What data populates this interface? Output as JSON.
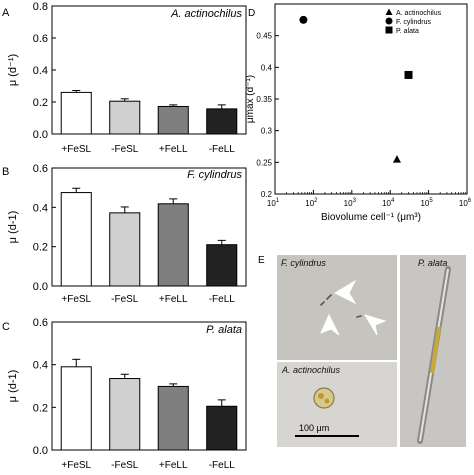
{
  "panel_labels": {
    "A": "A",
    "B": "B",
    "C": "C",
    "D": "D",
    "E": "E"
  },
  "chart_data": [
    {
      "type": "bar",
      "panel": "A",
      "title": "A. actinochilus",
      "ylabel": "μ (d⁻¹)",
      "categories": [
        "+FeSL",
        "-FeSL",
        "+FeLL",
        "-FeLL"
      ],
      "values": [
        0.26,
        0.205,
        0.172,
        0.157
      ],
      "errors": [
        0.012,
        0.015,
        0.01,
        0.025
      ],
      "bar_colors": [
        "#ffffff",
        "#d0d0d0",
        "#7f7f7f",
        "#222222"
      ],
      "ylim": [
        0,
        0.8
      ],
      "yticks": [
        0.0,
        0.2,
        0.4,
        0.6,
        0.8
      ],
      "ytick_labels": [
        "0.0",
        "0.2",
        "0.4",
        "0.6",
        "0.8"
      ]
    },
    {
      "type": "bar",
      "panel": "B",
      "title": "F. cylindrus",
      "ylabel": "μ (d-1)",
      "categories": [
        "+FeSL",
        "-FeSL",
        "+FeLL",
        "-FeLL"
      ],
      "values": [
        0.475,
        0.372,
        0.418,
        0.21
      ],
      "errors": [
        0.022,
        0.03,
        0.025,
        0.022
      ],
      "bar_colors": [
        "#ffffff",
        "#d0d0d0",
        "#7f7f7f",
        "#222222"
      ],
      "ylim": [
        0,
        0.6
      ],
      "yticks": [
        0.0,
        0.2,
        0.4,
        0.6
      ],
      "ytick_labels": [
        "0.0",
        "0.2",
        "0.4",
        "0.6"
      ]
    },
    {
      "type": "bar",
      "panel": "C",
      "title": "P. alata",
      "ylabel": "μ (d-1)",
      "categories": [
        "+FeSL",
        "-FeSL",
        "+FeLL",
        "-FeLL"
      ],
      "values": [
        0.39,
        0.335,
        0.298,
        0.205
      ],
      "errors": [
        0.035,
        0.02,
        0.012,
        0.03
      ],
      "bar_colors": [
        "#ffffff",
        "#d0d0d0",
        "#7f7f7f",
        "#222222"
      ],
      "ylim": [
        0,
        0.6
      ],
      "yticks": [
        0.0,
        0.2,
        0.4,
        0.6
      ],
      "ytick_labels": [
        "0.0",
        "0.2",
        "0.4",
        "0.6"
      ]
    },
    {
      "type": "scatter",
      "panel": "D",
      "xlabel": "Biovolume cell⁻¹ (μm³)",
      "ylabel": "μmax (d⁻¹)",
      "xscale": "log",
      "xlim": [
        10,
        1000000
      ],
      "ylim": [
        0.2,
        0.5
      ],
      "yticks": [
        0.2,
        0.25,
        0.3,
        0.35,
        0.4,
        0.45
      ],
      "ytick_labels": [
        "0.2",
        "0.25",
        "0.3",
        "0.35",
        "0.4",
        "0.45"
      ],
      "xticks": [
        10,
        100,
        1000,
        10000,
        100000,
        1000000
      ],
      "xtick_exponents": [
        "1",
        "2",
        "3",
        "4",
        "5",
        "6"
      ],
      "legend_position": "top-right",
      "series": [
        {
          "name": "A. actinochilus",
          "marker": "triangle",
          "x": 15000,
          "y": 0.255
        },
        {
          "name": "F. cylindrus",
          "marker": "circle",
          "x": 55,
          "y": 0.475
        },
        {
          "name": "P. alata",
          "marker": "square",
          "x": 30000,
          "y": 0.388
        }
      ]
    }
  ],
  "micrographs": {
    "f_cylindrus_label": "F. cylindrus",
    "p_alata_label": "P. alata",
    "a_actinochilus_label": "A. actinochilus",
    "scale_bar_label": "100 μm"
  },
  "colors": {
    "bar_edge": "#000000",
    "micro_background": "#c8c6c2",
    "diatom_gold": "#c9a83a"
  }
}
